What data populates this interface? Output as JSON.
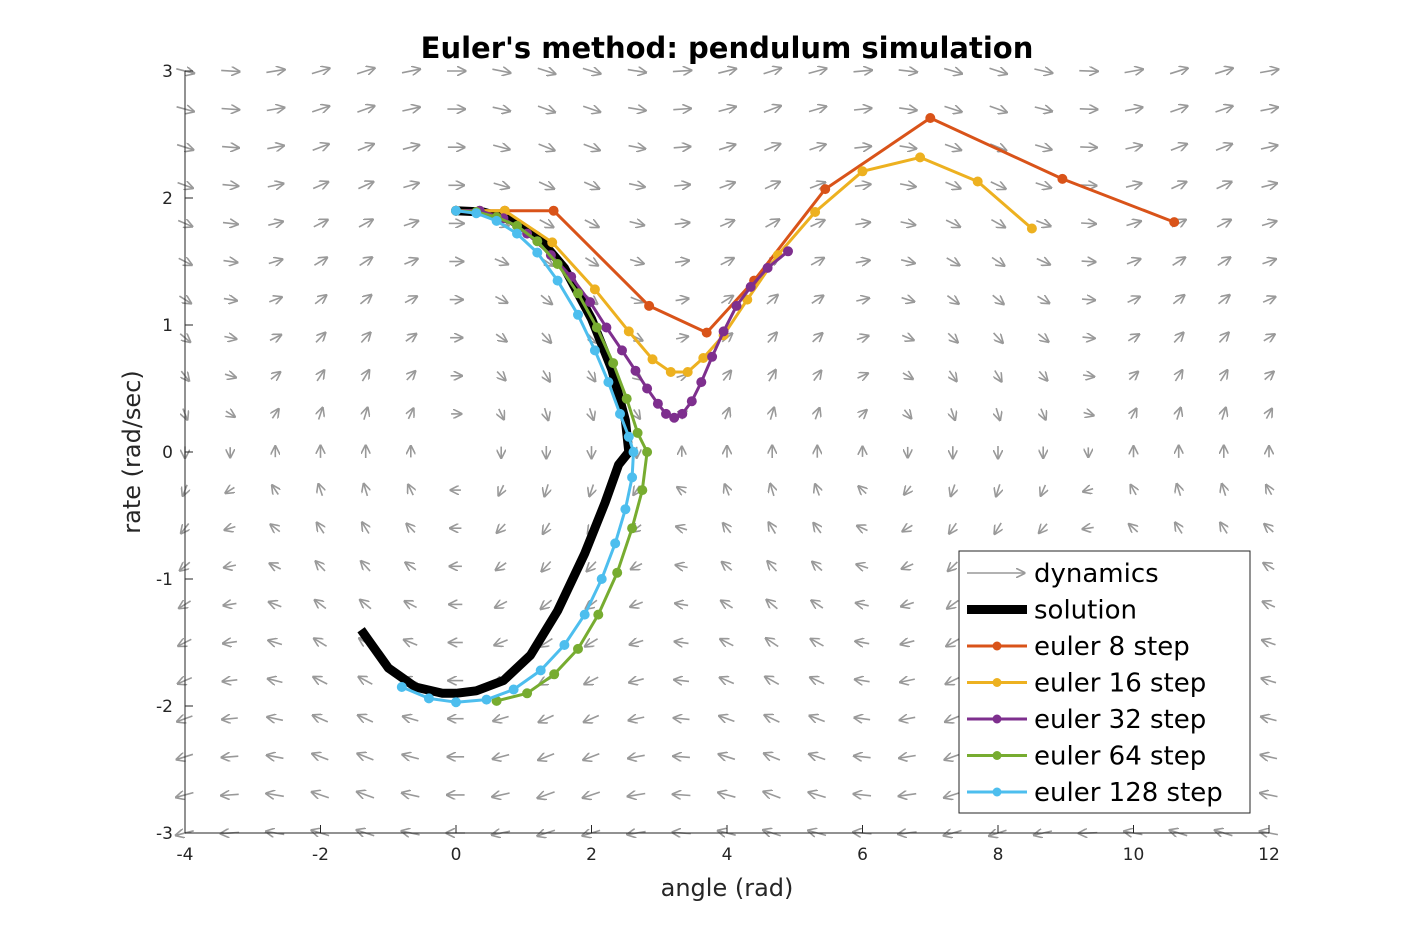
{
  "chart_data": {
    "type": "line",
    "title": "Euler's method:  pendulum simulation",
    "xlabel": "angle (rad)",
    "ylabel": "rate (rad/sec)",
    "xlim": [
      -4,
      12
    ],
    "ylim": [
      -3,
      3
    ],
    "xticks": [
      -4,
      -2,
      0,
      2,
      4,
      6,
      8,
      10,
      12
    ],
    "yticks": [
      -3,
      -2,
      -1,
      0,
      1,
      2,
      3
    ],
    "grid": false,
    "legend_position": "bottom-right",
    "vector_field": {
      "name": "dynamics",
      "color": "#999999",
      "description_equation": "dtheta = omega, domega = -sin(theta)",
      "x_range": [
        -4,
        12
      ],
      "y_range": [
        -3,
        3
      ],
      "nx": 24,
      "ny": 20
    },
    "series": [
      {
        "name": "solution",
        "color": "#000000",
        "marker": "none",
        "points": [
          [
            -1.4,
            -1.4
          ],
          [
            -1.0,
            -1.7
          ],
          [
            -0.6,
            -1.85
          ],
          [
            -0.2,
            -1.9
          ],
          [
            0.0,
            -1.9
          ],
          [
            0.3,
            -1.88
          ],
          [
            0.7,
            -1.8
          ],
          [
            1.1,
            -1.6
          ],
          [
            1.5,
            -1.25
          ],
          [
            1.9,
            -0.8
          ],
          [
            2.2,
            -0.4
          ],
          [
            2.4,
            -0.1
          ],
          [
            2.55,
            0.0
          ],
          [
            2.5,
            0.25
          ],
          [
            2.3,
            0.65
          ],
          [
            2.0,
            1.05
          ],
          [
            1.6,
            1.45
          ],
          [
            1.2,
            1.7
          ],
          [
            0.8,
            1.83
          ],
          [
            0.4,
            1.89
          ],
          [
            0.0,
            1.9
          ]
        ]
      },
      {
        "name": "euler 8 step",
        "color": "#D95319",
        "marker": "star",
        "points": [
          [
            0.0,
            1.9
          ],
          [
            0.72,
            1.9
          ],
          [
            1.44,
            1.9
          ],
          [
            2.85,
            1.15
          ],
          [
            3.7,
            0.94
          ],
          [
            4.4,
            1.35
          ],
          [
            5.45,
            2.07
          ],
          [
            7.0,
            2.63
          ],
          [
            8.95,
            2.15
          ],
          [
            10.6,
            1.81
          ]
        ]
      },
      {
        "name": "euler 16 step",
        "color": "#EDB120",
        "marker": "star",
        "points": [
          [
            0.0,
            1.9
          ],
          [
            0.35,
            1.9
          ],
          [
            0.72,
            1.9
          ],
          [
            1.42,
            1.65
          ],
          [
            2.05,
            1.28
          ],
          [
            2.55,
            0.95
          ],
          [
            2.9,
            0.73
          ],
          [
            3.17,
            0.63
          ],
          [
            3.42,
            0.63
          ],
          [
            3.65,
            0.74
          ],
          [
            3.95,
            0.92
          ],
          [
            4.3,
            1.2
          ],
          [
            4.75,
            1.55
          ],
          [
            5.3,
            1.89
          ],
          [
            6.0,
            2.21
          ],
          [
            6.85,
            2.32
          ],
          [
            7.7,
            2.13
          ],
          [
            8.5,
            1.76
          ]
        ]
      },
      {
        "name": "euler 32 step",
        "color": "#7E2F8E",
        "marker": "star",
        "points": [
          [
            0.0,
            1.9
          ],
          [
            0.35,
            1.9
          ],
          [
            0.7,
            1.84
          ],
          [
            1.05,
            1.72
          ],
          [
            1.4,
            1.55
          ],
          [
            1.7,
            1.38
          ],
          [
            1.98,
            1.18
          ],
          [
            2.22,
            0.98
          ],
          [
            2.45,
            0.8
          ],
          [
            2.65,
            0.64
          ],
          [
            2.82,
            0.5
          ],
          [
            2.98,
            0.38
          ],
          [
            3.1,
            0.3
          ],
          [
            3.22,
            0.27
          ],
          [
            3.34,
            0.3
          ],
          [
            3.48,
            0.4
          ],
          [
            3.62,
            0.55
          ],
          [
            3.78,
            0.75
          ],
          [
            3.95,
            0.95
          ],
          [
            4.14,
            1.15
          ],
          [
            4.35,
            1.3
          ],
          [
            4.6,
            1.45
          ],
          [
            4.9,
            1.58
          ]
        ]
      },
      {
        "name": "euler 64 step",
        "color": "#77AC30",
        "marker": "star",
        "points": [
          [
            0.0,
            1.9
          ],
          [
            0.3,
            1.89
          ],
          [
            0.6,
            1.85
          ],
          [
            0.9,
            1.78
          ],
          [
            1.2,
            1.66
          ],
          [
            1.5,
            1.48
          ],
          [
            1.8,
            1.25
          ],
          [
            2.08,
            0.98
          ],
          [
            2.32,
            0.7
          ],
          [
            2.52,
            0.42
          ],
          [
            2.68,
            0.15
          ],
          [
            2.82,
            0.0
          ],
          [
            2.75,
            -0.3
          ],
          [
            2.6,
            -0.6
          ],
          [
            2.38,
            -0.95
          ],
          [
            2.1,
            -1.28
          ],
          [
            1.8,
            -1.55
          ],
          [
            1.45,
            -1.75
          ],
          [
            1.05,
            -1.9
          ],
          [
            0.6,
            -1.96
          ]
        ]
      },
      {
        "name": "euler 128 step",
        "color": "#4DBEEE",
        "marker": "star",
        "points": [
          [
            0.0,
            1.9
          ],
          [
            0.3,
            1.88
          ],
          [
            0.6,
            1.82
          ],
          [
            0.9,
            1.72
          ],
          [
            1.2,
            1.57
          ],
          [
            1.5,
            1.35
          ],
          [
            1.8,
            1.08
          ],
          [
            2.05,
            0.8
          ],
          [
            2.25,
            0.55
          ],
          [
            2.42,
            0.3
          ],
          [
            2.55,
            0.12
          ],
          [
            2.62,
            0.0
          ],
          [
            2.6,
            -0.2
          ],
          [
            2.5,
            -0.45
          ],
          [
            2.35,
            -0.72
          ],
          [
            2.15,
            -1.0
          ],
          [
            1.9,
            -1.28
          ],
          [
            1.6,
            -1.52
          ],
          [
            1.25,
            -1.72
          ],
          [
            0.85,
            -1.87
          ],
          [
            0.45,
            -1.95
          ],
          [
            0.0,
            -1.97
          ],
          [
            -0.4,
            -1.94
          ],
          [
            -0.8,
            -1.85
          ]
        ]
      }
    ]
  }
}
